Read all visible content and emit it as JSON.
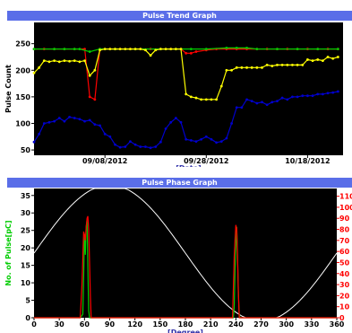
{
  "chart_data": [
    {
      "type": "line",
      "title": "Pulse Trend Graph",
      "xlabel": "[Date]",
      "ylabel": "Pulse Count",
      "ylim": [
        40,
        290
      ],
      "yticks": [
        50,
        100,
        150,
        200,
        250
      ],
      "xtick_labels": [
        {
          "label": "09/08/2012",
          "x": 14
        },
        {
          "label": "09/28/2012",
          "x": 34
        },
        {
          "label": "10/18/2012",
          "x": 54
        }
      ],
      "xlim": [
        0,
        61
      ],
      "grid": false,
      "series": [
        {
          "color": "#ff0000",
          "marker": "dot",
          "points": [
            [
              0,
              240
            ],
            [
              2,
              240
            ],
            [
              4,
              240
            ],
            [
              6,
              240
            ],
            [
              8,
              240
            ],
            [
              10,
              240
            ],
            [
              11,
              150
            ],
            [
              12,
              145
            ],
            [
              13,
              240
            ],
            [
              15,
              240
            ],
            [
              17,
              240
            ],
            [
              19,
              240
            ],
            [
              21,
              240
            ],
            [
              23,
              240
            ],
            [
              25,
              240
            ],
            [
              27,
              240
            ],
            [
              29,
              240
            ],
            [
              30,
              232
            ],
            [
              31,
              232
            ],
            [
              32,
              235
            ],
            [
              34,
              238
            ],
            [
              36,
              240
            ],
            [
              38,
              240
            ],
            [
              40,
              240
            ],
            [
              42,
              240
            ],
            [
              44,
              240
            ],
            [
              46,
              240
            ],
            [
              48,
              240
            ],
            [
              50,
              240
            ],
            [
              52,
              240
            ],
            [
              54,
              240
            ],
            [
              56,
              240
            ],
            [
              58,
              240
            ],
            [
              60,
              240
            ]
          ]
        },
        {
          "color": "#00cc00",
          "marker": "dot",
          "points": [
            [
              0,
              240
            ],
            [
              4,
              240
            ],
            [
              6,
              240
            ],
            [
              8,
              240
            ],
            [
              9,
              240
            ],
            [
              11,
              235
            ],
            [
              13,
              240
            ],
            [
              16,
              240
            ],
            [
              20,
              240
            ],
            [
              25,
              240
            ],
            [
              28,
              240
            ],
            [
              31,
              240
            ],
            [
              34,
              240
            ],
            [
              38,
              242
            ],
            [
              40,
              242
            ],
            [
              42,
              242
            ],
            [
              44,
              240
            ],
            [
              48,
              240
            ],
            [
              52,
              240
            ],
            [
              56,
              240
            ],
            [
              60,
              240
            ]
          ]
        },
        {
          "color": "#ffff00",
          "marker": "dot",
          "points": [
            [
              0,
              195
            ],
            [
              1,
              205
            ],
            [
              2,
              218
            ],
            [
              3,
              216
            ],
            [
              4,
              218
            ],
            [
              5,
              216
            ],
            [
              6,
              218
            ],
            [
              7,
              217
            ],
            [
              8,
              218
            ],
            [
              9,
              216
            ],
            [
              10,
              218
            ],
            [
              11,
              190
            ],
            [
              12,
              200
            ],
            [
              13,
              238
            ],
            [
              14,
              240
            ],
            [
              15,
              240
            ],
            [
              16,
              240
            ],
            [
              17,
              240
            ],
            [
              18,
              240
            ],
            [
              19,
              240
            ],
            [
              20,
              240
            ],
            [
              21,
              240
            ],
            [
              22,
              238
            ],
            [
              23,
              228
            ],
            [
              24,
              238
            ],
            [
              25,
              240
            ],
            [
              26,
              240
            ],
            [
              27,
              240
            ],
            [
              28,
              240
            ],
            [
              29,
              240
            ],
            [
              30,
              155
            ],
            [
              31,
              150
            ],
            [
              32,
              148
            ],
            [
              33,
              145
            ],
            [
              34,
              145
            ],
            [
              35,
              145
            ],
            [
              36,
              145
            ],
            [
              37,
              170
            ],
            [
              38,
              200
            ],
            [
              39,
              200
            ],
            [
              40,
              205
            ],
            [
              41,
              205
            ],
            [
              42,
              205
            ],
            [
              43,
              205
            ],
            [
              44,
              205
            ],
            [
              45,
              205
            ],
            [
              46,
              210
            ],
            [
              47,
              208
            ],
            [
              48,
              210
            ],
            [
              49,
              210
            ],
            [
              50,
              210
            ],
            [
              51,
              210
            ],
            [
              52,
              210
            ],
            [
              53,
              210
            ],
            [
              54,
              220
            ],
            [
              55,
              218
            ],
            [
              56,
              220
            ],
            [
              57,
              218
            ],
            [
              58,
              225
            ],
            [
              59,
              222
            ],
            [
              60,
              225
            ]
          ]
        },
        {
          "color": "#0000cc",
          "marker": "dot",
          "points": [
            [
              0,
              65
            ],
            [
              1,
              80
            ],
            [
              2,
              100
            ],
            [
              3,
              102
            ],
            [
              4,
              104
            ],
            [
              5,
              110
            ],
            [
              6,
              104
            ],
            [
              7,
              112
            ],
            [
              8,
              110
            ],
            [
              9,
              108
            ],
            [
              10,
              104
            ],
            [
              11,
              106
            ],
            [
              12,
              98
            ],
            [
              13,
              96
            ],
            [
              14,
              80
            ],
            [
              15,
              75
            ],
            [
              16,
              60
            ],
            [
              17,
              55
            ],
            [
              18,
              56
            ],
            [
              19,
              66
            ],
            [
              20,
              60
            ],
            [
              21,
              56
            ],
            [
              22,
              56
            ],
            [
              23,
              54
            ],
            [
              24,
              56
            ],
            [
              25,
              65
            ],
            [
              26,
              90
            ],
            [
              27,
              102
            ],
            [
              28,
              110
            ],
            [
              29,
              102
            ],
            [
              30,
              70
            ],
            [
              31,
              68
            ],
            [
              32,
              66
            ],
            [
              33,
              70
            ],
            [
              34,
              75
            ],
            [
              35,
              70
            ],
            [
              36,
              64
            ],
            [
              37,
              66
            ],
            [
              38,
              72
            ],
            [
              39,
              100
            ],
            [
              40,
              130
            ],
            [
              41,
              130
            ],
            [
              42,
              145
            ],
            [
              43,
              142
            ],
            [
              44,
              138
            ],
            [
              45,
              140
            ],
            [
              46,
              135
            ],
            [
              47,
              140
            ],
            [
              48,
              142
            ],
            [
              49,
              148
            ],
            [
              50,
              145
            ],
            [
              51,
              150
            ],
            [
              52,
              150
            ],
            [
              53,
              152
            ],
            [
              54,
              152
            ],
            [
              55,
              152
            ],
            [
              56,
              155
            ],
            [
              57,
              155
            ],
            [
              58,
              157
            ],
            [
              59,
              158
            ],
            [
              60,
              160
            ]
          ]
        }
      ]
    },
    {
      "type": "line",
      "title": "Pulse Phase Graph",
      "xlabel": "[Degree]",
      "ylabel": "No. of Pulse[pC]",
      "xlim": [
        0,
        360
      ],
      "xticks": [
        0,
        30,
        60,
        90,
        120,
        150,
        180,
        210,
        240,
        270,
        300,
        330,
        360
      ],
      "ylim_left": [
        0,
        37
      ],
      "yticks_left": [
        0,
        5,
        10,
        15,
        20,
        25,
        30,
        35
      ],
      "ylim_right": [
        0,
        117
      ],
      "yticks_right": [
        0,
        10,
        20,
        30,
        40,
        50,
        60,
        70,
        80,
        90,
        100,
        110
      ],
      "grid": false,
      "series": [
        {
          "color": "#ffffff",
          "axis": "sine",
          "points": []
        },
        {
          "color": "#00cc00",
          "axis": "left",
          "points": [
            [
              0,
              0
            ],
            [
              55,
              0
            ],
            [
              58,
              1
            ],
            [
              59,
              12
            ],
            [
              60,
              24
            ],
            [
              61,
              18
            ],
            [
              62,
              26
            ],
            [
              63,
              28
            ],
            [
              64,
              14
            ],
            [
              65,
              2
            ],
            [
              66,
              0
            ],
            [
              67,
              0
            ],
            [
              237,
              0
            ],
            [
              238,
              3
            ],
            [
              239,
              14
            ],
            [
              240,
              20
            ],
            [
              241,
              26
            ],
            [
              242,
              18
            ],
            [
              243,
              7
            ],
            [
              244,
              1
            ],
            [
              245,
              0
            ],
            [
              360,
              0
            ]
          ]
        },
        {
          "color": "#ff0000",
          "axis": "right",
          "points": [
            [
              0,
              0
            ],
            [
              55,
              0
            ],
            [
              57,
              30
            ],
            [
              58,
              55
            ],
            [
              59,
              78
            ],
            [
              60,
              75
            ],
            [
              61,
              70
            ],
            [
              62,
              82
            ],
            [
              63,
              90
            ],
            [
              64,
              92
            ],
            [
              65,
              80
            ],
            [
              66,
              50
            ],
            [
              67,
              20
            ],
            [
              68,
              0
            ],
            [
              236,
              0
            ],
            [
              237,
              25
            ],
            [
              238,
              55
            ],
            [
              239,
              70
            ],
            [
              240,
              84
            ],
            [
              241,
              80
            ],
            [
              242,
              55
            ],
            [
              243,
              25
            ],
            [
              244,
              0
            ],
            [
              360,
              0
            ]
          ]
        }
      ]
    }
  ]
}
